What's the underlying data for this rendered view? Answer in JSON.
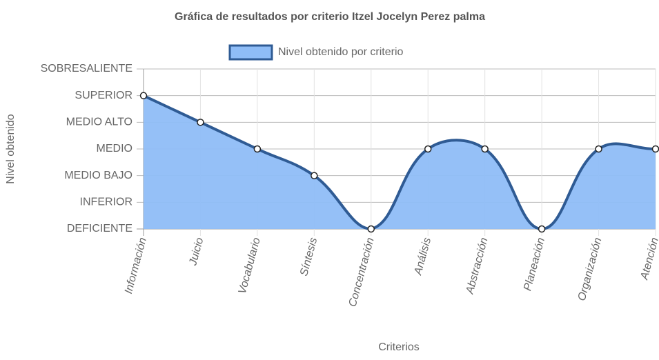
{
  "chart_data": {
    "type": "line",
    "title": "Gráfica de resultados por criterio Itzel Jocelyn Perez palma",
    "x_label": "Criterios",
    "y_label": "Nivel obtenido",
    "categories": [
      "Información",
      "Juicio",
      "Vocabulario",
      "Síntesis",
      "Concentración",
      "Análisis",
      "Abstracción",
      "Planeación",
      "Organización",
      "Atención"
    ],
    "series": [
      {
        "name": "Nivel obtenido por criterio",
        "color": "#8fbdf7",
        "border_color": "#2f5b94",
        "values": [
          5,
          4,
          3,
          2,
          0,
          3,
          3,
          0,
          3,
          3
        ]
      }
    ],
    "ylim": [
      0,
      6
    ],
    "yticks": [
      {
        "value": 0,
        "label": "DEFICIENTE"
      },
      {
        "value": 1,
        "label": "INFERIOR"
      },
      {
        "value": 2,
        "label": "MEDIO BAJO"
      },
      {
        "value": 3,
        "label": "MEDIO"
      },
      {
        "value": 4,
        "label": "MEDIO ALTO"
      },
      {
        "value": 5,
        "label": "SUPERIOR"
      },
      {
        "value": 6,
        "label": "SOBRESALIENTE"
      }
    ],
    "grid": true,
    "fill": true,
    "smooth": true,
    "legend": "top"
  }
}
